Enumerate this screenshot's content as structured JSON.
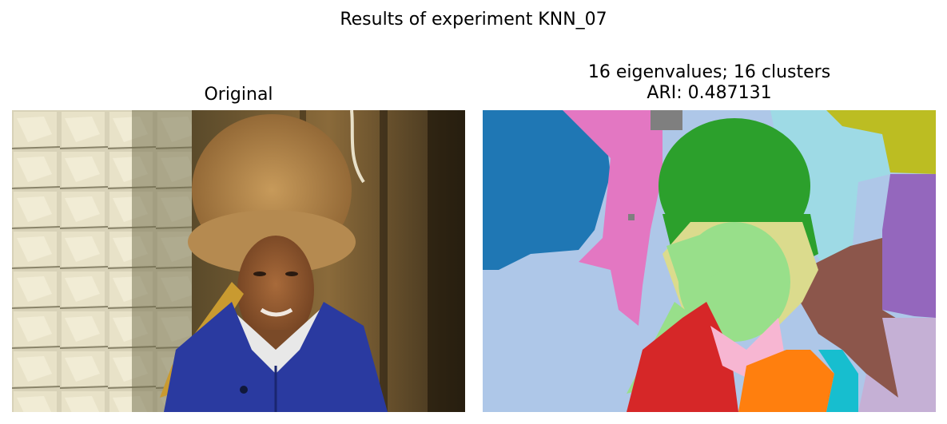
{
  "figure": {
    "suptitle": "Results of experiment KNN_07"
  },
  "panels": [
    {
      "title": "Original",
      "content": "photograph-portrait"
    },
    {
      "title_line1": "16 eigenvalues; 16 clusters",
      "title_line2": "ARI: 0.487131",
      "content": "segmentation-map"
    }
  ],
  "palette": {
    "blue": "#1f77b4",
    "light_blue": "#aec7e8",
    "orange": "#ff7f0e",
    "green": "#2ca02c",
    "light_green": "#98df8a",
    "red": "#d62728",
    "purple": "#9467bd",
    "brown": "#8c564b",
    "pink": "#e377c2",
    "light_pink": "#f7b6d2",
    "gray": "#7f7f7f",
    "olive": "#bcbd22",
    "khaki": "#dbdb8d",
    "cyan": "#17becf",
    "light_cyan": "#9edae5",
    "lavender": "#c5b0d5"
  }
}
